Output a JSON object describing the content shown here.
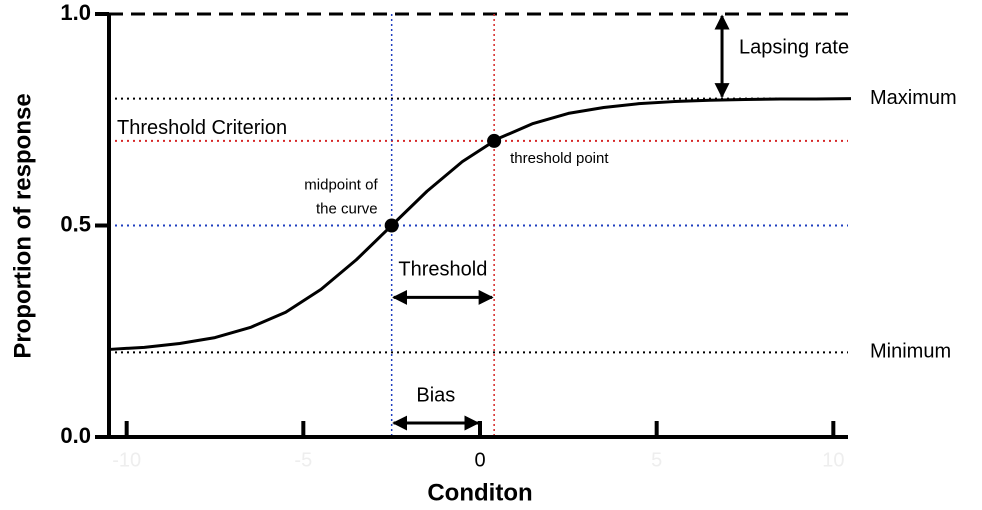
{
  "chart_data": {
    "type": "line",
    "x_label": "Conditon",
    "y_label": "Proportion of response",
    "xlim": [
      -10.5,
      10.5
    ],
    "ylim": [
      0,
      1
    ],
    "xticks": [
      -10,
      -5,
      0,
      5,
      10
    ],
    "yticks": [
      {
        "value": 0,
        "label": "0.0"
      },
      {
        "value": 0.5,
        "label": "0.5"
      },
      {
        "value": 1,
        "label": "1.0"
      }
    ],
    "series": [
      {
        "color": "#000000",
        "x": [
          -10.5,
          -9.5,
          -8.5,
          -7.5,
          -6.5,
          -5.5,
          -4.5,
          -3.5,
          -2.5,
          -1.5,
          -0.5,
          0.5,
          1.5,
          2.5,
          3.5,
          4.5,
          5.5,
          6.5,
          7.5,
          8.5,
          9.5,
          10.5
        ],
        "values": [
          0.207,
          0.212,
          0.221,
          0.235,
          0.259,
          0.295,
          0.349,
          0.419,
          0.5,
          0.581,
          0.651,
          0.705,
          0.741,
          0.765,
          0.779,
          0.788,
          0.793,
          0.796,
          0.798,
          0.799,
          0.799,
          0.8
        ]
      }
    ],
    "hlines": [
      {
        "y": 1,
        "style": "dashed",
        "color": "#000000"
      },
      {
        "y": 0.8,
        "style": "dotted",
        "color": "#000000",
        "label": "Maximum",
        "label_position": "right"
      },
      {
        "y": 0.7,
        "style": "dotted",
        "color": "#d62728",
        "label": "Threshold Criterion",
        "label_position": "inside"
      },
      {
        "y": 0.5,
        "style": "dotted",
        "color": "#1f3fbf"
      },
      {
        "y": 0.2,
        "style": "dotted",
        "color": "#000000",
        "label": "Minimum",
        "label_position": "right"
      }
    ],
    "vlines": [
      {
        "x": -2.5,
        "color": "#1f3fbf"
      },
      {
        "x": 0.4,
        "color": "#d62728"
      }
    ],
    "points": [
      {
        "x": -2.5,
        "y": 0.5,
        "label": [
          "midpoint of",
          "the curve"
        ]
      },
      {
        "x": 0.4,
        "y": 0.7,
        "label": [
          "threshold point"
        ]
      }
    ],
    "h_arrows": [
      {
        "x1": -2.5,
        "x2": 0.4,
        "y": 0.33,
        "label": "Threshold"
      },
      {
        "x1": -2.5,
        "x2": 0,
        "y": 0.033,
        "label": "Bias"
      }
    ],
    "v_arrows": [
      {
        "x": 6.85,
        "y1": 0.8,
        "y2": 1,
        "label": "Lapsing rate"
      }
    ]
  }
}
